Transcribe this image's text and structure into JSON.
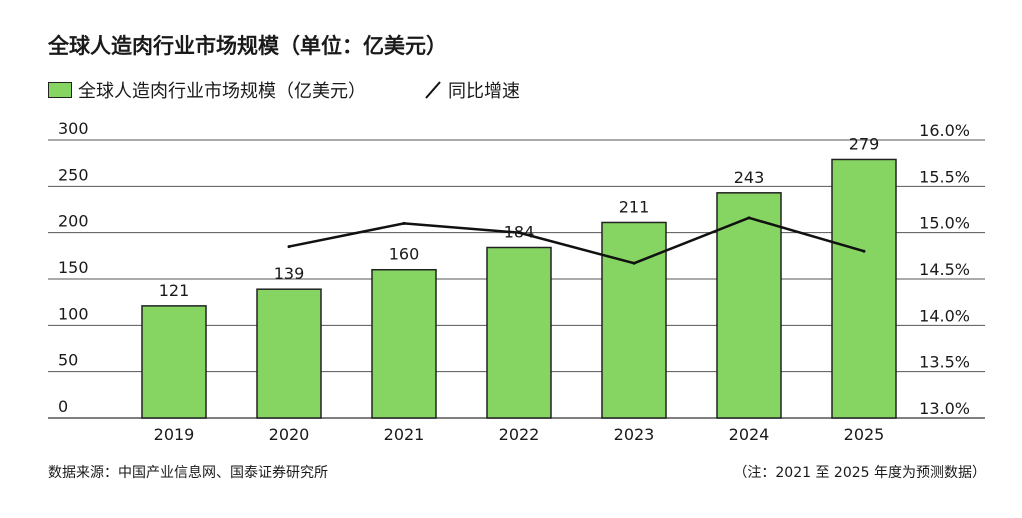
{
  "title": "全球人造肉行业市场规模（单位：亿美元）",
  "legend": {
    "bar_label": "全球人造肉行业市场规模（亿美元）",
    "line_label": "同比增速"
  },
  "footer": {
    "source": "数据来源：中国产业信息网、国泰证券研究所",
    "note": "（注：2021 至 2025 年度为预测数据）"
  },
  "colors": {
    "bar": "#86d562",
    "bar_border": "#222222",
    "line": "#111111",
    "grid": "#555555"
  },
  "chart_data": {
    "type": "bar",
    "categories": [
      "2019",
      "2020",
      "2021",
      "2022",
      "2023",
      "2024",
      "2025"
    ],
    "series": [
      {
        "name": "全球人造肉行业市场规模（亿美元）",
        "type": "bar",
        "axis": "left",
        "values": [
          121,
          139,
          160,
          184,
          211,
          243,
          279
        ],
        "labels": [
          "121",
          "139",
          "160",
          "184",
          "211",
          "243",
          "279"
        ]
      },
      {
        "name": "同比增速",
        "type": "line",
        "axis": "right",
        "values": [
          null,
          14.85,
          15.1,
          15.0,
          14.67,
          15.16,
          14.8
        ]
      }
    ],
    "ylim_left": [
      0,
      300
    ],
    "yticks_left": [
      "0",
      "50",
      "100",
      "150",
      "200",
      "250",
      "300"
    ],
    "ylim_right": [
      13.0,
      16.0
    ],
    "yticks_right": [
      "13.0%",
      "13.5%",
      "14.0%",
      "14.5%",
      "15.0%",
      "15.5%",
      "16.0%"
    ],
    "grid": true,
    "legend_position": "top-left"
  }
}
